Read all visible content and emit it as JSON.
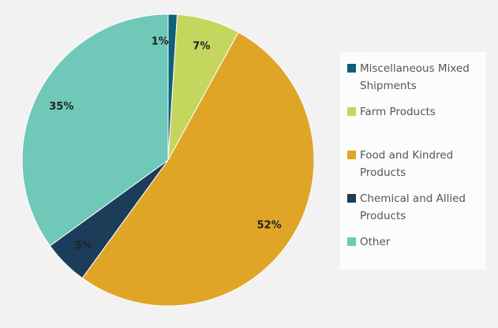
{
  "chart_data": {
    "type": "pie",
    "start": "top",
    "direction": "clockwise",
    "legend_position": "right",
    "slices": [
      {
        "name": "Miscellaneous Mixed Shipments",
        "value": 1,
        "label": "1%",
        "color": "#0e5f78"
      },
      {
        "name": "Farm Products",
        "value": 7,
        "label": "7%",
        "color": "#c5d65e"
      },
      {
        "name": "Food and Kindred Products",
        "value": 52,
        "label": "52%",
        "color": "#e0a526"
      },
      {
        "name": "Chemical and Allied Products",
        "value": 5,
        "label": "5%",
        "color": "#1b3d5a"
      },
      {
        "name": "Other",
        "value": 35,
        "label": "35%",
        "color": "#6fc8b8"
      }
    ]
  }
}
